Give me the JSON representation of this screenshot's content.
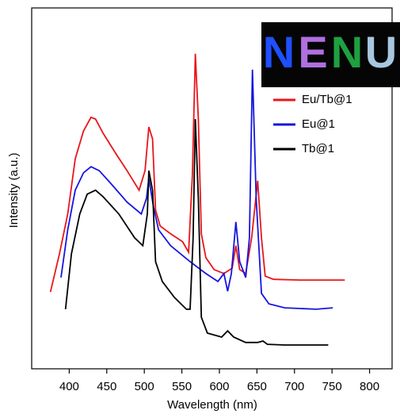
{
  "chart_data": {
    "type": "line",
    "x_label": "Wavelength (nm)",
    "y_label": "Intensity (a.u.)",
    "xlim": [
      350,
      830
    ],
    "xticks": [
      400,
      450,
      500,
      550,
      600,
      650,
      700,
      750,
      800
    ],
    "ylim": [
      0,
      100
    ],
    "legend": "top-right",
    "inset_letters": [
      "N",
      "E",
      "N",
      "U"
    ],
    "inset_colors": [
      "#1f4fff",
      "#b070e0",
      "#1fa040",
      "#a8c8e0"
    ],
    "series": [
      {
        "name": "Eu/Tb@1",
        "color": "#e8161b",
        "x": [
          375,
          387,
          398,
          408,
          419,
          429,
          435,
          445,
          461,
          477,
          493,
          501,
          506,
          511,
          515,
          521,
          535,
          551,
          559,
          564,
          568,
          572,
          576,
          582,
          593,
          606,
          617,
          622,
          627,
          635,
          643,
          651,
          656,
          661,
          672,
          708,
          767
        ],
        "values": [
          21.3,
          31.9,
          42.9,
          58.2,
          65.9,
          69.7,
          69.2,
          65.3,
          60.0,
          54.9,
          49.5,
          54.9,
          67.0,
          63.7,
          44.0,
          39.6,
          37.4,
          35.2,
          32.3,
          53.8,
          87.3,
          69.2,
          37.4,
          30.8,
          27.5,
          26.4,
          27.9,
          34.1,
          27.5,
          26.4,
          36.3,
          52.1,
          36.3,
          25.7,
          24.8,
          24.6,
          24.6
        ]
      },
      {
        "name": "Eu@1",
        "color": "#1515e0",
        "x": [
          389,
          398,
          408,
          419,
          429,
          440,
          456,
          477,
          496,
          503,
          506,
          512,
          519,
          535,
          561,
          582,
          598,
          606,
          611,
          616,
          622,
          627,
          635,
          640,
          644,
          649,
          656,
          666,
          687,
          729,
          751
        ],
        "values": [
          25.3,
          38.5,
          49.5,
          54.3,
          56.0,
          54.9,
          51.2,
          46.2,
          42.9,
          47.3,
          52.7,
          45.1,
          38.5,
          34.1,
          29.7,
          26.4,
          24.2,
          26.4,
          21.5,
          26.4,
          40.7,
          29.7,
          25.3,
          36.3,
          82.9,
          47.3,
          20.9,
          18.0,
          16.9,
          16.5,
          16.9
        ]
      },
      {
        "name": "Tb@1",
        "color": "#000000",
        "x": [
          395,
          403,
          414,
          424,
          435,
          445,
          466,
          487,
          498,
          504,
          506,
          511,
          515,
          524,
          540,
          556,
          561,
          565,
          568,
          572,
          576,
          584,
          603,
          611,
          619,
          635,
          651,
          658,
          664,
          687,
          745
        ],
        "values": [
          16.5,
          31.9,
          42.9,
          48.4,
          49.5,
          47.7,
          42.9,
          36.3,
          34.1,
          42.9,
          54.9,
          49.5,
          29.7,
          24.2,
          19.8,
          16.5,
          16.5,
          36.3,
          69.2,
          47.3,
          14.3,
          9.9,
          8.8,
          10.5,
          8.8,
          7.3,
          7.3,
          7.7,
          6.8,
          6.6,
          6.6
        ]
      }
    ]
  }
}
